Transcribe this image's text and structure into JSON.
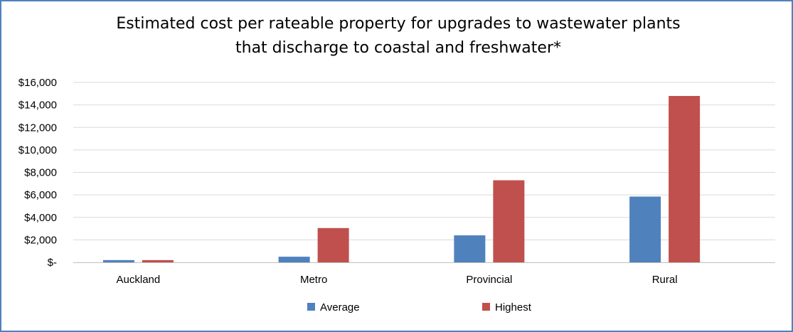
{
  "chart_data": {
    "type": "bar",
    "title_lines": [
      "Estimated cost per rateable property for upgrades to wastewater plants",
      "that discharge to coastal and freshwater*"
    ],
    "categories": [
      "Auckland",
      "Metro",
      "Provincial",
      "Rural"
    ],
    "series": [
      {
        "name": "Average",
        "values": [
          200,
          500,
          2400,
          5850
        ],
        "color": "#4f81bd"
      },
      {
        "name": "Highest",
        "values": [
          200,
          3050,
          7300,
          14800
        ],
        "color": "#c0504d"
      }
    ],
    "y_ticks": [
      "$-",
      "$2,000",
      "$4,000",
      "$6,000",
      "$8,000",
      "$10,000",
      "$12,000",
      "$14,000",
      "$16,000"
    ],
    "ylim": [
      0,
      16000
    ],
    "y_step": 2000,
    "grid": true,
    "legend_position": "bottom",
    "xlabel": "",
    "ylabel": ""
  },
  "colors": {
    "border": "#4f81bd",
    "gridline": "#d9d9d9",
    "axis": "#bfbfbf"
  }
}
